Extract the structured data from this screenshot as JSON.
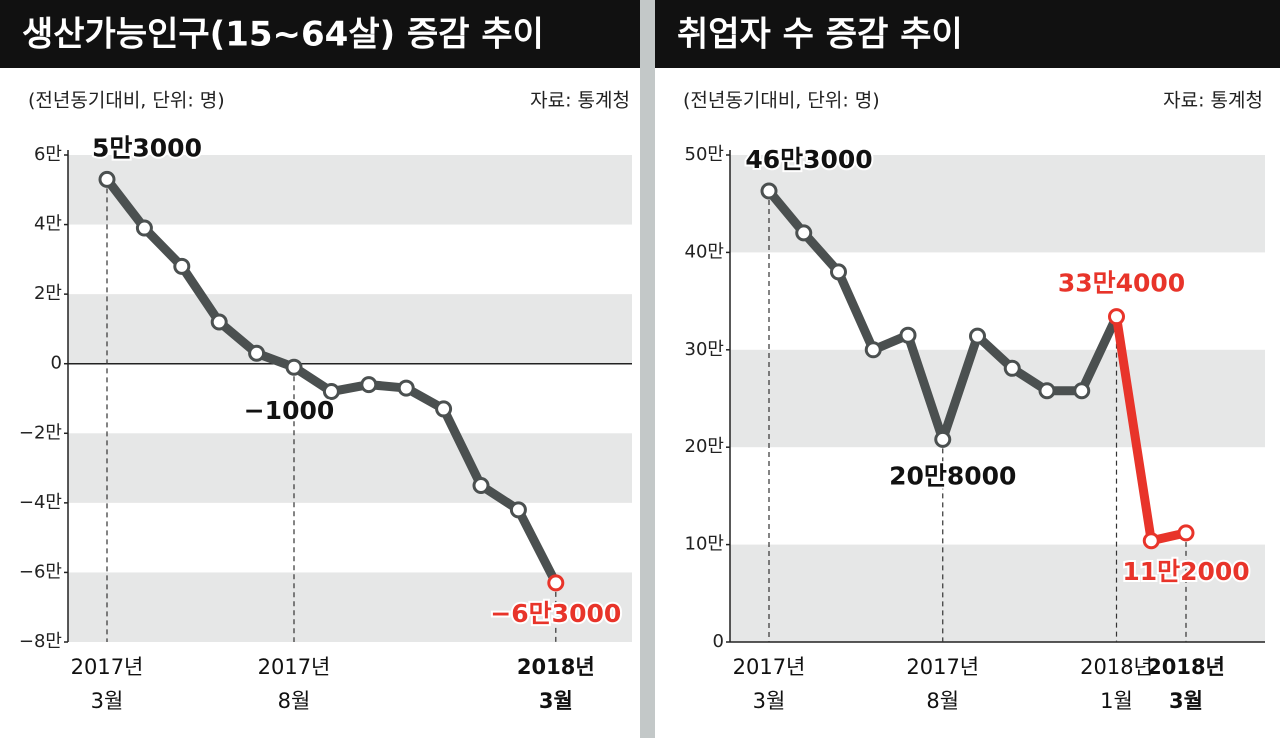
{
  "chart_data": [
    {
      "type": "line",
      "title": "생산가능인구(15~64살) 증감 추이",
      "subtitle": "(전년동기대비, 단위: 명)",
      "source": "자료: 통계청",
      "categories": [
        "2017년 3월",
        null,
        null,
        null,
        null,
        "2017년 8월",
        null,
        null,
        null,
        null,
        null,
        null,
        "2018년 3월"
      ],
      "series": [
        {
          "color": "#4b5050",
          "values": [
            53000,
            39000,
            28000,
            12000,
            3000,
            -1000,
            -8000,
            -6000,
            -7000,
            -13000,
            -35000,
            -42000,
            -63000
          ],
          "value_labels": [
            "5만3000",
            null,
            null,
            null,
            null,
            "−1000",
            null,
            null,
            null,
            null,
            null,
            null,
            "−6만3000"
          ]
        }
      ],
      "highlight": {
        "from": 12,
        "color": "#e8342a",
        "line": false
      },
      "ylim": [
        -80000,
        60000
      ],
      "yticks": [
        {
          "value": 60000,
          "label": "6만"
        },
        {
          "value": 40000,
          "label": "4만"
        },
        {
          "value": 20000,
          "label": "2만"
        },
        0,
        {
          "value": -20000,
          "label": "−2만"
        },
        {
          "value": -40000,
          "label": "−4만"
        },
        {
          "value": -60000,
          "label": "−6만"
        },
        {
          "value": -80000,
          "label": "−8만"
        }
      ]
    },
    {
      "type": "line",
      "title": "취업자 수 증감 추이",
      "subtitle": "(전년동기대비, 단위: 명)",
      "source": "자료: 통계청",
      "categories": [
        "2017년 3월",
        null,
        null,
        null,
        null,
        "2017년 8월",
        null,
        null,
        null,
        null,
        "2018년 1월",
        null,
        "2018년 3월"
      ],
      "series": [
        {
          "color": "#4b5050",
          "values": [
            463000,
            420000,
            380000,
            300000,
            315000,
            208000,
            314000,
            281000,
            258000,
            258000,
            334000,
            104000,
            112000
          ],
          "value_labels": [
            "46만3000",
            null,
            null,
            null,
            null,
            "20만8000",
            null,
            null,
            null,
            null,
            "33만4000",
            null,
            "11만2000"
          ]
        }
      ],
      "highlight": {
        "from": 10,
        "color": "#e8342a",
        "line": true
      },
      "ylim": [
        0,
        500000
      ],
      "yticks": [
        0,
        {
          "value": 100000,
          "label": "10만"
        },
        {
          "value": 200000,
          "label": "20만"
        },
        {
          "value": 300000,
          "label": "30만"
        },
        {
          "value": 400000,
          "label": "40만"
        },
        {
          "value": 500000,
          "label": "50만"
        }
      ]
    }
  ]
}
